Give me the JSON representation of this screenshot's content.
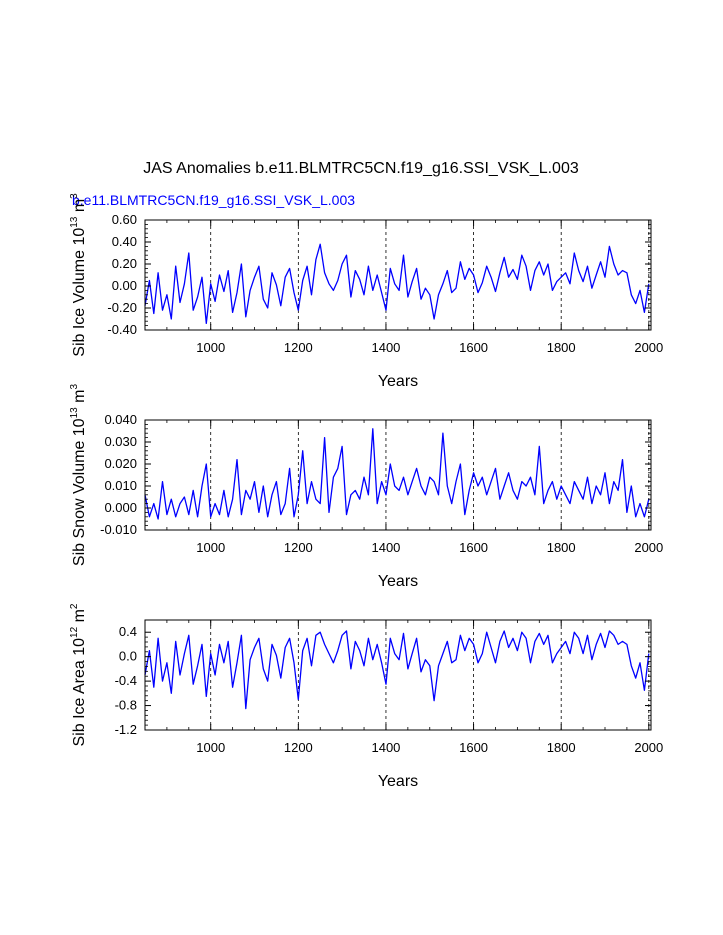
{
  "title": "JAS Anomalies b.e11.BLMTRC5CN.f19_g16.SSI_VSK_L.003",
  "subtitle": "b.e11.BLMTRC5CN.f19_g16.SSI_VSK_L.003",
  "colors": {
    "series": "#0000ff",
    "subtitle": "#0000ff",
    "axis": "#000000",
    "grid": "#000000"
  },
  "chart_data": [
    {
      "type": "line",
      "name": "panel-ice-volume",
      "ylabel": "Sib Ice Volume 10",
      "ylabel_exp1": "13",
      "ylabel_unit": " m",
      "ylabel_exp2": "3",
      "xlabel": "Years",
      "xlim": [
        850,
        2005
      ],
      "ylim": [
        -0.4,
        0.6
      ],
      "xticks": [
        1000,
        1200,
        1400,
        1600,
        1800,
        2000
      ],
      "xtick_labels": [
        "1000",
        "1200",
        "1400",
        "1600",
        "1800",
        "2000"
      ],
      "yticks": [
        -0.4,
        -0.2,
        0.0,
        0.2,
        0.4,
        0.6
      ],
      "ytick_labels": [
        "-0.40",
        "-0.20",
        "0.00",
        "0.20",
        "0.40",
        "0.60"
      ],
      "grid_x": [
        1000,
        1200,
        1400,
        1600,
        1800,
        2000
      ],
      "series": [
        {
          "name": "ice-volume-anomaly",
          "x_start": 850,
          "x_step": 10,
          "values": [
            -0.18,
            0.05,
            -0.25,
            0.12,
            -0.22,
            -0.08,
            -0.3,
            0.18,
            -0.15,
            0.02,
            0.3,
            -0.22,
            -0.1,
            0.08,
            -0.34,
            0.02,
            -0.14,
            0.1,
            -0.05,
            0.14,
            -0.24,
            -0.06,
            0.2,
            -0.28,
            -0.04,
            0.08,
            0.18,
            -0.12,
            -0.2,
            0.12,
            0.01,
            -0.18,
            0.08,
            0.16,
            -0.06,
            -0.22,
            0.05,
            0.18,
            -0.08,
            0.24,
            0.38,
            0.12,
            0.02,
            -0.04,
            0.05,
            0.2,
            0.28,
            -0.1,
            0.14,
            0.06,
            -0.08,
            0.18,
            -0.04,
            0.1,
            -0.06,
            -0.22,
            0.16,
            0.02,
            -0.04,
            0.28,
            -0.1,
            0.04,
            0.16,
            -0.12,
            -0.02,
            -0.08,
            -0.3,
            -0.08,
            0.02,
            0.14,
            -0.06,
            -0.02,
            0.22,
            0.06,
            0.16,
            0.1,
            -0.06,
            0.03,
            0.18,
            0.08,
            -0.05,
            0.12,
            0.26,
            0.08,
            0.15,
            0.06,
            0.28,
            0.18,
            -0.04,
            0.14,
            0.22,
            0.1,
            0.2,
            -0.04,
            0.04,
            0.08,
            0.12,
            0.02,
            0.3,
            0.14,
            0.04,
            0.18,
            -0.02,
            0.1,
            0.22,
            0.08,
            0.36,
            0.2,
            0.1,
            0.14,
            0.12,
            -0.08,
            -0.16,
            -0.04,
            -0.24,
            0.02
          ]
        }
      ]
    },
    {
      "type": "line",
      "name": "panel-snow-volume",
      "ylabel": "Sib Snow Volume 10",
      "ylabel_exp1": "13",
      "ylabel_unit": " m",
      "ylabel_exp2": "3",
      "xlabel": "Years",
      "xlim": [
        850,
        2005
      ],
      "ylim": [
        -0.01,
        0.04
      ],
      "xticks": [
        1000,
        1200,
        1400,
        1600,
        1800,
        2000
      ],
      "xtick_labels": [
        "1000",
        "1200",
        "1400",
        "1600",
        "1800",
        "2000"
      ],
      "yticks": [
        -0.01,
        0.0,
        0.01,
        0.02,
        0.03,
        0.04
      ],
      "ytick_labels": [
        "-0.010",
        "0.000",
        "0.010",
        "0.020",
        "0.030",
        "0.040"
      ],
      "grid_x": [
        1000,
        1200,
        1400,
        1600,
        1800,
        2000
      ],
      "series": [
        {
          "name": "snow-volume-anomaly",
          "x_start": 850,
          "x_step": 10,
          "values": [
            0.006,
            -0.004,
            0.002,
            -0.005,
            0.012,
            -0.003,
            0.004,
            -0.004,
            0.002,
            0.005,
            -0.003,
            0.008,
            -0.004,
            0.01,
            0.02,
            -0.004,
            0.002,
            -0.003,
            0.008,
            -0.004,
            0.004,
            0.022,
            -0.003,
            0.008,
            0.004,
            0.012,
            -0.002,
            0.01,
            -0.004,
            0.006,
            0.012,
            -0.003,
            0.002,
            0.018,
            -0.004,
            0.006,
            0.026,
            0.002,
            0.012,
            0.004,
            0.002,
            0.032,
            -0.002,
            0.014,
            0.018,
            0.028,
            -0.003,
            0.006,
            0.008,
            0.004,
            0.014,
            0.006,
            0.036,
            0.002,
            0.012,
            0.006,
            0.02,
            0.01,
            0.008,
            0.014,
            0.006,
            0.012,
            0.018,
            0.01,
            0.006,
            0.014,
            0.012,
            0.006,
            0.034,
            0.01,
            0.002,
            0.012,
            0.02,
            -0.003,
            0.008,
            0.016,
            0.01,
            0.014,
            0.006,
            0.012,
            0.018,
            0.004,
            0.01,
            0.016,
            0.008,
            0.004,
            0.012,
            0.01,
            0.014,
            0.006,
            0.028,
            0.002,
            0.008,
            0.012,
            0.004,
            0.01,
            0.006,
            0.002,
            0.012,
            0.008,
            0.004,
            0.014,
            0.002,
            0.01,
            0.006,
            0.016,
            0.002,
            0.012,
            0.008,
            0.022,
            -0.002,
            0.01,
            -0.004,
            0.002,
            -0.004,
            0.004
          ]
        }
      ]
    },
    {
      "type": "line",
      "name": "panel-ice-area",
      "ylabel": "Sib Ice Area 10",
      "ylabel_exp1": "12",
      "ylabel_unit": " m",
      "ylabel_exp2": "2",
      "xlabel": "Years",
      "xlim": [
        850,
        2005
      ],
      "ylim": [
        -1.2,
        0.6
      ],
      "xticks": [
        1000,
        1200,
        1400,
        1600,
        1800,
        2000
      ],
      "xtick_labels": [
        "1000",
        "1200",
        "1400",
        "1600",
        "1800",
        "2000"
      ],
      "yticks": [
        -1.2,
        -0.8,
        -0.4,
        0.0,
        0.4
      ],
      "ytick_labels": [
        "-1.2",
        "-0.8",
        "-0.4",
        "0.0",
        "0.4"
      ],
      "grid_x": [
        1000,
        1200,
        1400,
        1600,
        1800,
        2000
      ],
      "series": [
        {
          "name": "ice-area-anomaly",
          "x_start": 850,
          "x_step": 10,
          "values": [
            -0.3,
            0.1,
            -0.5,
            0.3,
            -0.4,
            -0.1,
            -0.6,
            0.25,
            -0.3,
            0.05,
            0.35,
            -0.45,
            -0.15,
            0.2,
            -0.65,
            0.05,
            -0.3,
            0.2,
            -0.1,
            0.25,
            -0.5,
            -0.1,
            0.35,
            -0.85,
            -0.05,
            0.15,
            0.3,
            -0.2,
            -0.4,
            0.2,
            0.02,
            -0.35,
            0.15,
            0.3,
            -0.1,
            -0.7,
            0.1,
            0.3,
            -0.15,
            0.35,
            0.4,
            0.2,
            0.05,
            -0.1,
            0.1,
            0.35,
            0.42,
            -0.2,
            0.25,
            0.1,
            -0.15,
            0.3,
            -0.05,
            0.2,
            -0.1,
            -0.45,
            0.3,
            0.05,
            -0.05,
            0.38,
            -0.2,
            0.05,
            0.3,
            -0.25,
            -0.05,
            -0.15,
            -0.72,
            -0.15,
            0.05,
            0.25,
            -0.1,
            -0.05,
            0.35,
            0.1,
            0.3,
            0.2,
            -0.1,
            0.05,
            0.4,
            0.15,
            -0.1,
            0.25,
            0.42,
            0.15,
            0.3,
            0.1,
            0.4,
            0.3,
            -0.1,
            0.25,
            0.38,
            0.2,
            0.35,
            -0.1,
            0.05,
            0.15,
            0.25,
            0.05,
            0.4,
            0.3,
            0.05,
            0.35,
            -0.05,
            0.2,
            0.38,
            0.15,
            0.42,
            0.35,
            0.2,
            0.25,
            0.2,
            -0.15,
            -0.35,
            -0.1,
            -0.55,
            0.05
          ]
        }
      ]
    }
  ]
}
